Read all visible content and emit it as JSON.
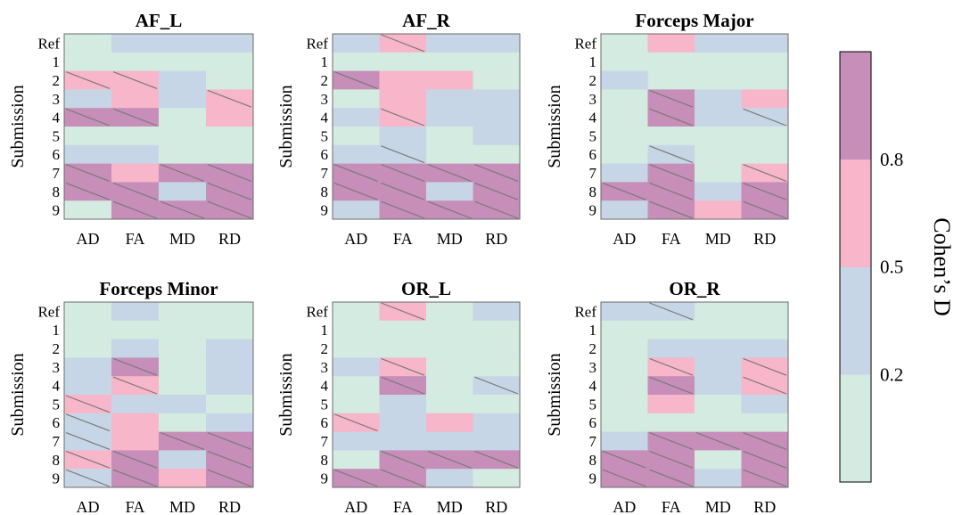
{
  "chart_data": {
    "type": "heatmap",
    "ylabel": "Submission",
    "colormap": {
      "colors": [
        "#d3ebe0",
        "#c7d6e6",
        "#f7b6ca",
        "#c68eb9"
      ],
      "boundaries": [
        0.2,
        0.5,
        0.8
      ],
      "tick_labels": [
        "0.2",
        "0.5",
        "0.8"
      ],
      "label": "Cohen’s D",
      "placement": "right"
    },
    "hatch_note": "diagonal lines mark some cells",
    "panels": [
      {
        "title": "AF_L",
        "rows": [
          "Ref",
          "1",
          "2",
          "3",
          "4",
          "5",
          "6",
          "7",
          "8",
          "9"
        ],
        "cols": [
          "AD",
          "FA",
          "MD",
          "RD"
        ],
        "levels": [
          [
            0,
            1,
            1,
            1
          ],
          [
            0,
            0,
            0,
            0
          ],
          [
            2,
            2,
            1,
            0
          ],
          [
            1,
            2,
            1,
            2
          ],
          [
            3,
            3,
            0,
            2
          ],
          [
            0,
            0,
            0,
            0
          ],
          [
            1,
            1,
            0,
            0
          ],
          [
            3,
            2,
            3,
            3
          ],
          [
            3,
            3,
            1,
            3
          ],
          [
            0,
            3,
            3,
            3
          ]
        ],
        "hatched": [
          [
            0,
            0,
            0,
            0
          ],
          [
            0,
            0,
            0,
            0
          ],
          [
            1,
            1,
            0,
            0
          ],
          [
            0,
            0,
            0,
            1
          ],
          [
            1,
            1,
            0,
            0
          ],
          [
            0,
            0,
            0,
            0
          ],
          [
            0,
            0,
            0,
            0
          ],
          [
            1,
            0,
            1,
            1
          ],
          [
            1,
            1,
            0,
            1
          ],
          [
            0,
            1,
            1,
            1
          ]
        ]
      },
      {
        "title": "AF_R",
        "rows": [
          "Ref",
          "1",
          "2",
          "3",
          "4",
          "5",
          "6",
          "7",
          "8",
          "9"
        ],
        "cols": [
          "AD",
          "FA",
          "MD",
          "RD"
        ],
        "levels": [
          [
            1,
            2,
            1,
            1
          ],
          [
            0,
            0,
            0,
            0
          ],
          [
            3,
            2,
            2,
            0
          ],
          [
            0,
            2,
            1,
            1
          ],
          [
            1,
            2,
            1,
            1
          ],
          [
            0,
            1,
            0,
            1
          ],
          [
            1,
            1,
            0,
            0
          ],
          [
            3,
            3,
            3,
            3
          ],
          [
            3,
            3,
            1,
            3
          ],
          [
            1,
            3,
            3,
            3
          ]
        ],
        "hatched": [
          [
            0,
            1,
            0,
            0
          ],
          [
            0,
            0,
            0,
            0
          ],
          [
            1,
            0,
            0,
            0
          ],
          [
            0,
            0,
            0,
            0
          ],
          [
            0,
            1,
            0,
            0
          ],
          [
            0,
            0,
            0,
            0
          ],
          [
            0,
            1,
            0,
            0
          ],
          [
            1,
            1,
            1,
            1
          ],
          [
            1,
            1,
            0,
            1
          ],
          [
            0,
            1,
            1,
            1
          ]
        ]
      },
      {
        "title": "Forceps Major",
        "rows": [
          "Ref",
          "1",
          "2",
          "3",
          "4",
          "5",
          "6",
          "7",
          "8",
          "9"
        ],
        "cols": [
          "AD",
          "FA",
          "MD",
          "RD"
        ],
        "levels": [
          [
            0,
            2,
            1,
            1
          ],
          [
            0,
            0,
            0,
            0
          ],
          [
            1,
            0,
            0,
            0
          ],
          [
            0,
            3,
            1,
            2
          ],
          [
            0,
            3,
            1,
            1
          ],
          [
            0,
            0,
            0,
            0
          ],
          [
            0,
            1,
            0,
            0
          ],
          [
            1,
            3,
            0,
            2
          ],
          [
            3,
            3,
            1,
            3
          ],
          [
            1,
            3,
            2,
            3
          ]
        ],
        "hatched": [
          [
            0,
            0,
            0,
            0
          ],
          [
            0,
            0,
            0,
            0
          ],
          [
            0,
            0,
            0,
            0
          ],
          [
            0,
            1,
            0,
            0
          ],
          [
            0,
            1,
            0,
            1
          ],
          [
            0,
            0,
            0,
            0
          ],
          [
            0,
            1,
            0,
            0
          ],
          [
            0,
            1,
            0,
            1
          ],
          [
            1,
            1,
            0,
            1
          ],
          [
            0,
            1,
            0,
            1
          ]
        ]
      },
      {
        "title": "Forceps Minor",
        "rows": [
          "Ref",
          "1",
          "2",
          "3",
          "4",
          "5",
          "6",
          "7",
          "8",
          "9"
        ],
        "cols": [
          "AD",
          "FA",
          "MD",
          "RD"
        ],
        "levels": [
          [
            0,
            1,
            0,
            0
          ],
          [
            0,
            0,
            0,
            0
          ],
          [
            0,
            1,
            0,
            1
          ],
          [
            1,
            3,
            0,
            1
          ],
          [
            1,
            2,
            0,
            1
          ],
          [
            2,
            1,
            1,
            0
          ],
          [
            1,
            2,
            0,
            1
          ],
          [
            1,
            2,
            3,
            3
          ],
          [
            2,
            3,
            1,
            3
          ],
          [
            1,
            3,
            2,
            3
          ]
        ],
        "hatched": [
          [
            0,
            0,
            0,
            0
          ],
          [
            0,
            0,
            0,
            0
          ],
          [
            0,
            0,
            0,
            0
          ],
          [
            0,
            1,
            0,
            0
          ],
          [
            0,
            1,
            0,
            0
          ],
          [
            1,
            0,
            0,
            0
          ],
          [
            1,
            0,
            0,
            0
          ],
          [
            1,
            0,
            1,
            1
          ],
          [
            1,
            1,
            0,
            1
          ],
          [
            1,
            1,
            0,
            1
          ]
        ]
      },
      {
        "title": "OR_L",
        "rows": [
          "Ref",
          "1",
          "2",
          "3",
          "4",
          "5",
          "6",
          "7",
          "8",
          "9"
        ],
        "cols": [
          "AD",
          "FA",
          "MD",
          "RD"
        ],
        "levels": [
          [
            0,
            2,
            0,
            1
          ],
          [
            0,
            0,
            0,
            0
          ],
          [
            0,
            0,
            0,
            0
          ],
          [
            1,
            2,
            0,
            0
          ],
          [
            0,
            3,
            0,
            1
          ],
          [
            0,
            1,
            0,
            0
          ],
          [
            2,
            1,
            2,
            1
          ],
          [
            1,
            1,
            1,
            1
          ],
          [
            0,
            3,
            3,
            3
          ],
          [
            3,
            3,
            1,
            0
          ]
        ],
        "hatched": [
          [
            0,
            1,
            0,
            0
          ],
          [
            0,
            0,
            0,
            0
          ],
          [
            0,
            0,
            0,
            0
          ],
          [
            0,
            1,
            0,
            0
          ],
          [
            0,
            1,
            0,
            1
          ],
          [
            0,
            0,
            0,
            0
          ],
          [
            1,
            0,
            0,
            0
          ],
          [
            0,
            0,
            0,
            0
          ],
          [
            0,
            1,
            1,
            1
          ],
          [
            1,
            1,
            0,
            0
          ]
        ]
      },
      {
        "title": "OR_R",
        "rows": [
          "Ref",
          "1",
          "2",
          "3",
          "4",
          "5",
          "6",
          "7",
          "8",
          "9"
        ],
        "cols": [
          "AD",
          "FA",
          "MD",
          "RD"
        ],
        "levels": [
          [
            1,
            1,
            0,
            0
          ],
          [
            0,
            0,
            0,
            0
          ],
          [
            0,
            1,
            1,
            1
          ],
          [
            0,
            2,
            1,
            2
          ],
          [
            0,
            3,
            1,
            2
          ],
          [
            0,
            2,
            0,
            1
          ],
          [
            0,
            0,
            0,
            0
          ],
          [
            1,
            3,
            3,
            3
          ],
          [
            3,
            3,
            0,
            3
          ],
          [
            3,
            3,
            1,
            3
          ]
        ],
        "hatched": [
          [
            0,
            1,
            0,
            0
          ],
          [
            0,
            0,
            0,
            0
          ],
          [
            0,
            0,
            0,
            0
          ],
          [
            0,
            1,
            0,
            1
          ],
          [
            0,
            1,
            0,
            1
          ],
          [
            0,
            0,
            0,
            0
          ],
          [
            0,
            0,
            0,
            0
          ],
          [
            0,
            1,
            1,
            1
          ],
          [
            1,
            1,
            0,
            1
          ],
          [
            1,
            1,
            0,
            1
          ]
        ]
      }
    ]
  }
}
